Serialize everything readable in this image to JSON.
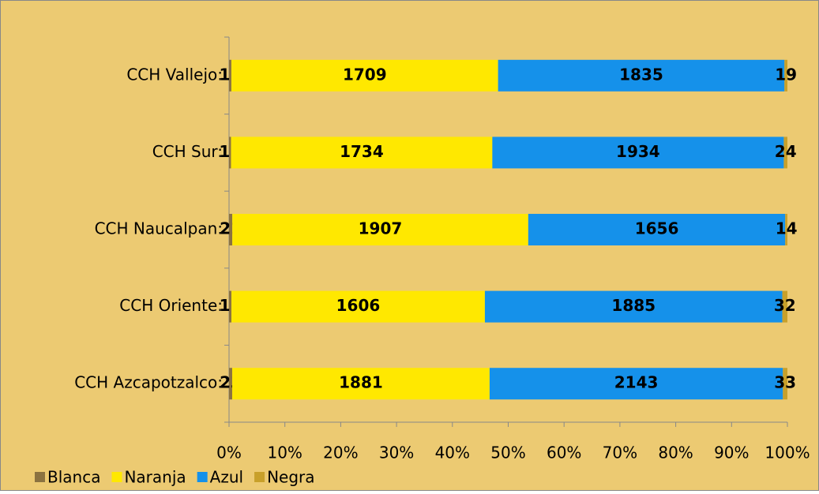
{
  "chart_data": {
    "type": "bar",
    "orientation": "horizontal",
    "stacking": "percent",
    "categories": [
      "CCH Vallejo:",
      "CCH Sur:",
      "CCH Naucalpan:",
      "CCH Oriente:",
      "CCH Azcapotzalco:"
    ],
    "series": [
      {
        "name": "Blanca",
        "color": "#8b7240",
        "values": [
          15,
          13,
          21,
          15,
          23
        ]
      },
      {
        "name": "Naranja",
        "color": "#ffe800",
        "values": [
          1709,
          1734,
          1907,
          1606,
          1881
        ]
      },
      {
        "name": "Azul",
        "color": "#1591ea",
        "values": [
          1835,
          1934,
          1656,
          1885,
          2143
        ]
      },
      {
        "name": "Negra",
        "color": "#c8a02a",
        "values": [
          19,
          24,
          14,
          32,
          33
        ]
      }
    ],
    "xlim": [
      0,
      100
    ],
    "xticks": [
      {
        "value": 0,
        "label": "0%"
      },
      {
        "value": 10,
        "label": "10%"
      },
      {
        "value": 20,
        "label": "20%"
      },
      {
        "value": 30,
        "label": "30%"
      },
      {
        "value": 40,
        "label": "40%"
      },
      {
        "value": 50,
        "label": "50%"
      },
      {
        "value": 60,
        "label": "60%"
      },
      {
        "value": 70,
        "label": "70%"
      },
      {
        "value": 80,
        "label": "80%"
      },
      {
        "value": 90,
        "label": "90%"
      },
      {
        "value": 100,
        "label": "100%"
      }
    ],
    "legend": "bottom-left"
  }
}
